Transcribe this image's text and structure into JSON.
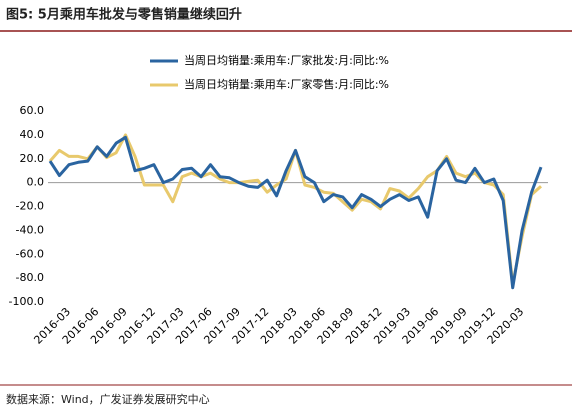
{
  "chart_data": {
    "type": "line",
    "title": "图5:  5月乘用车批发与零售销量继续回升",
    "source": "数据来源：Wind，广发证券发展研究中心",
    "categories": [
      null,
      null,
      "2016-03",
      null,
      null,
      "2016-06",
      null,
      null,
      "2016-09",
      null,
      null,
      "2016-12",
      null,
      null,
      "2017-03",
      null,
      null,
      "2017-06",
      null,
      null,
      "2017-09",
      null,
      null,
      "2017-12",
      null,
      null,
      "2018-03",
      null,
      null,
      "2018-06",
      null,
      null,
      "2018-09",
      null,
      null,
      "2018-12",
      null,
      null,
      "2019-03",
      null,
      null,
      "2019-06",
      null,
      null,
      "2019-09",
      null,
      null,
      "2019-12",
      null,
      null,
      "2020-03",
      null,
      null
    ],
    "series": [
      {
        "name": "当周日均销量:乘用车:厂家批发:月:同比:%",
        "color": "#2a64a0",
        "values": [
          18,
          6,
          15,
          17,
          18,
          30,
          22,
          33,
          38,
          10,
          12,
          15,
          0,
          3,
          11,
          12,
          5,
          15,
          5,
          4,
          0,
          -3,
          -4,
          2,
          -11,
          10,
          27,
          5,
          0,
          -16,
          -10,
          -12,
          -21,
          -10,
          -14,
          -20,
          -14,
          -10,
          -15,
          -12,
          -29,
          10,
          20,
          2,
          0,
          12,
          0,
          3,
          -15,
          -88,
          -40,
          -8,
          13
        ]
      },
      {
        "name": "当周日均销量:乘用车:厂家零售:月:同比:%",
        "color": "#e8c96c",
        "values": [
          18,
          27,
          22,
          22,
          20,
          30,
          21,
          25,
          40,
          22,
          -2,
          -2,
          -2,
          -16,
          5,
          8,
          5,
          8,
          3,
          0,
          0,
          1,
          2,
          -8,
          -2,
          3,
          27,
          -2,
          -4,
          -8,
          -9,
          -16,
          -23,
          -14,
          -16,
          -22,
          -5,
          -7,
          -13,
          -5,
          5,
          10,
          22,
          8,
          5,
          8,
          0,
          -2,
          -10,
          -85,
          -45,
          -10,
          -3
        ]
      }
    ],
    "ylim": [
      -100,
      60
    ],
    "yticks": [
      {
        "value": 60,
        "label": "60.0"
      },
      {
        "value": 40,
        "label": "40.0"
      },
      {
        "value": 20,
        "label": "20.0"
      },
      {
        "value": 0,
        "label": "0.0"
      },
      {
        "value": -20,
        "label": "-20.0"
      },
      {
        "value": -40,
        "label": "-40.0"
      },
      {
        "value": -60,
        "label": "-60.0"
      },
      {
        "value": -80,
        "label": "-80.0"
      },
      {
        "value": -100,
        "label": "-100.0"
      }
    ]
  }
}
